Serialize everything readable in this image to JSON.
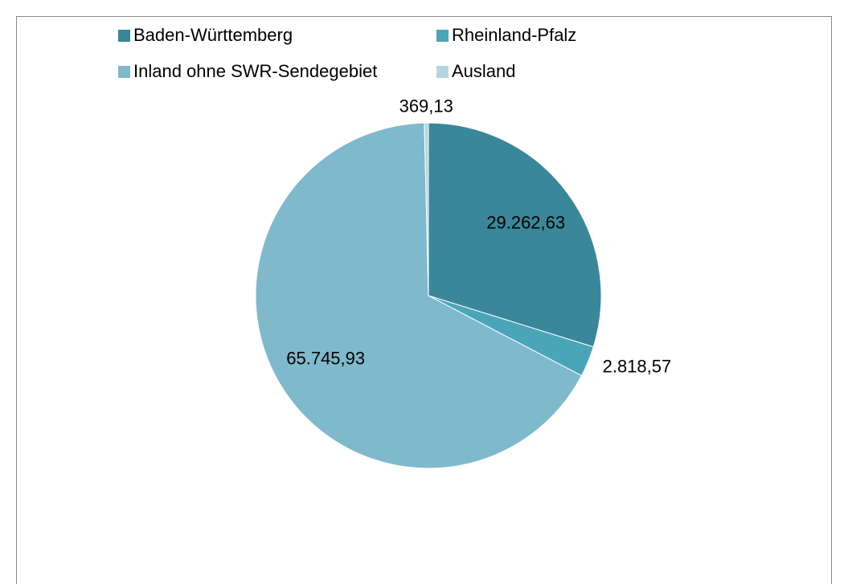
{
  "chart_data": {
    "type": "pie",
    "categories": [
      "Baden-Württemberg",
      "Rheinland-Pfalz",
      "Inland ohne SWR-Sendegebiet",
      "Ausland"
    ],
    "values": [
      29262.63,
      2818.57,
      65745.93,
      369.13
    ],
    "value_labels": [
      "29.262,63",
      "2.818,57",
      "65.745,93",
      "369,13"
    ],
    "colors": [
      "#3a8799",
      "#4aa5b8",
      "#7fb9cc",
      "#b5d6e0"
    ]
  }
}
